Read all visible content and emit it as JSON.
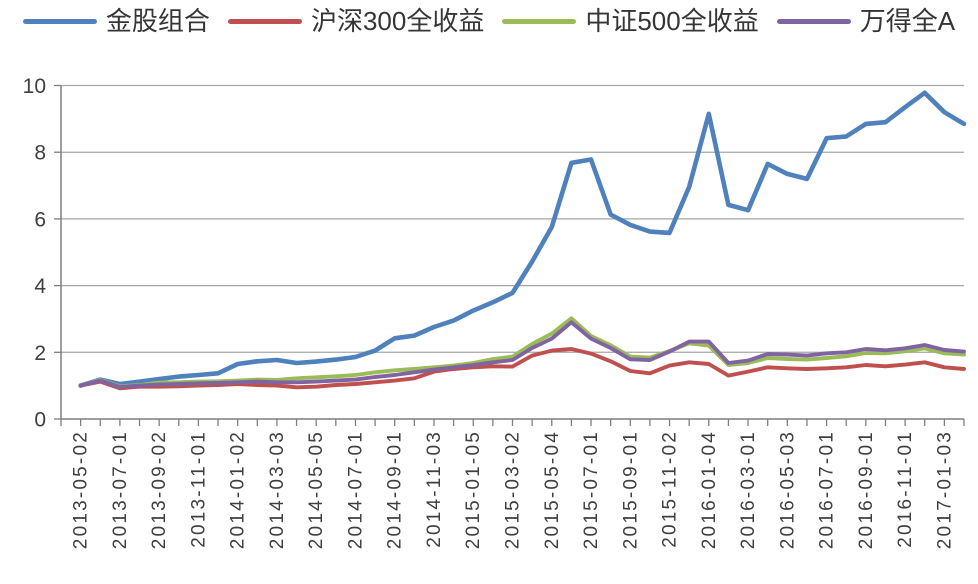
{
  "page": {
    "background": "#ffffff"
  },
  "chart_data": {
    "type": "line",
    "title": "",
    "legend_position": "top",
    "grid": "horizontal",
    "ylim": [
      0,
      10
    ],
    "y_ticks": [
      0,
      2,
      4,
      6,
      8,
      10
    ],
    "axis_colors": {
      "gridline": "#a6a6a6",
      "axis": "#7f7f7f",
      "tick_label": "#3f3f3f"
    },
    "x": [
      "2013-05",
      "2013-06",
      "2013-07",
      "2013-08",
      "2013-09",
      "2013-10",
      "2013-11",
      "2013-12",
      "2014-01",
      "2014-02",
      "2014-03",
      "2014-04",
      "2014-05",
      "2014-06",
      "2014-07",
      "2014-08",
      "2014-09",
      "2014-10",
      "2014-11",
      "2014-12",
      "2015-01",
      "2015-02",
      "2015-03",
      "2015-04",
      "2015-05",
      "2015-06",
      "2015-07",
      "2015-08",
      "2015-09",
      "2015-10",
      "2015-11",
      "2015-12",
      "2016-01",
      "2016-02",
      "2016-03",
      "2016-04",
      "2016-05",
      "2016-06",
      "2016-07",
      "2016-08",
      "2016-09",
      "2016-10",
      "2016-11",
      "2016-12",
      "2017-01",
      "2017-02"
    ],
    "x_tick_labels": [
      "2013-05-02",
      "2013-07-01",
      "2013-09-02",
      "2013-11-01",
      "2014-01-02",
      "2014-03-03",
      "2014-05-05",
      "2014-07-01",
      "2014-09-01",
      "2014-11-03",
      "2015-01-05",
      "2015-03-02",
      "2015-05-04",
      "2015-07-01",
      "2015-09-01",
      "2015-11-02",
      "2016-01-04",
      "2016-03-01",
      "2016-05-03",
      "2016-07-01",
      "2016-09-01",
      "2016-11-01",
      "2017-01-03"
    ],
    "x_label_every": 2,
    "series": [
      {
        "name": "金股组合",
        "color": "#4f81bd",
        "values": [
          1.0,
          1.18,
          1.05,
          1.12,
          1.2,
          1.27,
          1.32,
          1.37,
          1.65,
          1.73,
          1.77,
          1.68,
          1.72,
          1.78,
          1.86,
          2.05,
          2.42,
          2.5,
          2.76,
          2.95,
          3.25,
          3.5,
          3.78,
          4.72,
          5.76,
          7.68,
          7.78,
          6.13,
          5.82,
          5.62,
          5.58,
          6.96,
          9.15,
          6.42,
          6.26,
          7.65,
          7.35,
          7.2,
          8.42,
          8.47,
          8.85,
          8.9,
          9.35,
          9.78,
          9.2,
          8.85
        ]
      },
      {
        "name": "沪深300全收益",
        "color": "#c0504d",
        "values": [
          1.0,
          1.12,
          0.92,
          0.97,
          0.97,
          0.98,
          1.0,
          1.02,
          1.05,
          1.02,
          1.0,
          0.95,
          0.97,
          1.02,
          1.05,
          1.1,
          1.15,
          1.22,
          1.42,
          1.5,
          1.55,
          1.58,
          1.57,
          1.9,
          2.05,
          2.1,
          1.96,
          1.73,
          1.44,
          1.37,
          1.6,
          1.7,
          1.65,
          1.3,
          1.42,
          1.55,
          1.52,
          1.5,
          1.52,
          1.55,
          1.62,
          1.58,
          1.63,
          1.7,
          1.55,
          1.5
        ]
      },
      {
        "name": "中证500全收益",
        "color": "#9bbb59",
        "values": [
          1.0,
          1.17,
          0.98,
          1.02,
          1.09,
          1.1,
          1.12,
          1.13,
          1.15,
          1.18,
          1.17,
          1.22,
          1.25,
          1.28,
          1.32,
          1.4,
          1.46,
          1.5,
          1.55,
          1.6,
          1.68,
          1.8,
          1.87,
          2.25,
          2.56,
          3.02,
          2.49,
          2.21,
          1.87,
          1.84,
          2.04,
          2.27,
          2.2,
          1.62,
          1.68,
          1.83,
          1.8,
          1.78,
          1.83,
          1.88,
          1.98,
          1.97,
          2.03,
          2.12,
          1.97,
          1.93
        ]
      },
      {
        "name": "万得全A",
        "color": "#8064a2",
        "values": [
          1.0,
          1.15,
          0.96,
          1.0,
          1.03,
          1.05,
          1.07,
          1.08,
          1.1,
          1.12,
          1.1,
          1.1,
          1.12,
          1.15,
          1.18,
          1.26,
          1.32,
          1.4,
          1.48,
          1.55,
          1.62,
          1.7,
          1.77,
          2.13,
          2.41,
          2.9,
          2.41,
          2.13,
          1.79,
          1.77,
          2.02,
          2.32,
          2.32,
          1.68,
          1.75,
          1.95,
          1.93,
          1.9,
          1.97,
          2.0,
          2.1,
          2.06,
          2.12,
          2.22,
          2.07,
          2.02
        ]
      }
    ]
  }
}
